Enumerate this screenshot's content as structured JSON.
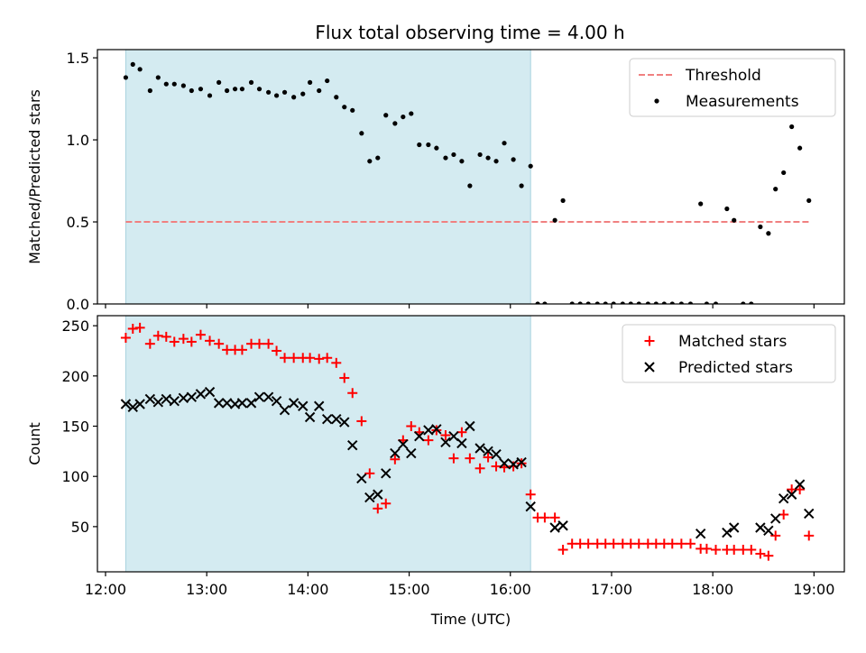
{
  "figure": {
    "title": "Flux total observing time = 4.00 h"
  },
  "chart_data": [
    {
      "type": "scatter",
      "ylabel": "Matched/Predicted stars",
      "xlim": [
        11.92,
        19.3
      ],
      "ylim": [
        0.0,
        1.55
      ],
      "yticks": [
        0.0,
        0.5,
        1.0,
        1.5
      ],
      "ytick_labels": [
        "0.0",
        "0.5",
        "1.0",
        "1.5"
      ],
      "shaded_interval": {
        "x": [
          12.2,
          16.2
        ],
        "color": "#d4ebf1"
      },
      "threshold": {
        "name": "Threshold",
        "value": 0.5,
        "x": [
          12.2,
          18.97
        ],
        "color": "#f08080"
      },
      "legend": {
        "placement": "top-right",
        "entries": [
          "Threshold",
          "Measurements"
        ]
      },
      "series": [
        {
          "name": "Measurements",
          "marker": "dot",
          "color": "#000000",
          "x": [
            12.2,
            12.27,
            12.34,
            12.44,
            12.52,
            12.6,
            12.68,
            12.77,
            12.85,
            12.94,
            13.03,
            13.12,
            13.2,
            13.28,
            13.35,
            13.44,
            13.52,
            13.61,
            13.69,
            13.77,
            13.86,
            13.95,
            14.02,
            14.11,
            14.19,
            14.28,
            14.36,
            14.44,
            14.53,
            14.61,
            14.69,
            14.77,
            14.86,
            14.94,
            15.02,
            15.1,
            15.19,
            15.27,
            15.36,
            15.44,
            15.52,
            15.6,
            15.7,
            15.78,
            15.86,
            15.94,
            16.03,
            16.11,
            16.2,
            16.27,
            16.34,
            16.44,
            16.52,
            16.61,
            16.69,
            16.77,
            16.86,
            16.94,
            17.02,
            17.11,
            17.19,
            17.27,
            17.36,
            17.44,
            17.52,
            17.6,
            17.69,
            17.78,
            17.88,
            17.94,
            18.03,
            18.14,
            18.21,
            18.3,
            18.38,
            18.47,
            18.55,
            18.62,
            18.7,
            18.78,
            18.86,
            18.95
          ],
          "y": [
            1.38,
            1.46,
            1.43,
            1.3,
            1.38,
            1.34,
            1.34,
            1.33,
            1.3,
            1.31,
            1.27,
            1.35,
            1.3,
            1.31,
            1.31,
            1.35,
            1.31,
            1.29,
            1.27,
            1.29,
            1.26,
            1.28,
            1.35,
            1.3,
            1.36,
            1.26,
            1.2,
            1.18,
            1.04,
            0.87,
            0.89,
            1.15,
            1.1,
            1.14,
            1.16,
            0.97,
            0.97,
            0.95,
            0.89,
            0.91,
            0.87,
            0.72,
            0.91,
            0.89,
            0.87,
            0.98,
            0.88,
            0.72,
            0.84,
            0.0,
            0.0,
            0.51,
            0.63,
            0.0,
            0.0,
            0.0,
            0.0,
            0.0,
            0.0,
            0.0,
            0.0,
            0.0,
            0.0,
            0.0,
            0.0,
            0.0,
            0.0,
            0.0,
            0.61,
            0.0,
            0.0,
            0.58,
            0.51,
            0.0,
            0.0,
            0.47,
            0.43,
            0.7,
            0.8,
            1.08,
            0.95,
            0.63
          ]
        }
      ]
    },
    {
      "type": "scatter",
      "xlabel": "Time (UTC)",
      "ylabel": "Count",
      "xlim": [
        11.92,
        19.3
      ],
      "ylim": [
        5,
        260
      ],
      "xticks": [
        12,
        13,
        14,
        15,
        16,
        17,
        18,
        19
      ],
      "xtick_labels": [
        "12:00",
        "13:00",
        "14:00",
        "15:00",
        "16:00",
        "17:00",
        "18:00",
        "19:00"
      ],
      "yticks": [
        50,
        100,
        150,
        200,
        250
      ],
      "ytick_labels": [
        "50",
        "100",
        "150",
        "200",
        "250"
      ],
      "shaded_interval": {
        "x": [
          12.2,
          16.2
        ],
        "color": "#d4ebf1"
      },
      "legend": {
        "placement": "top-right",
        "entries": [
          "Matched stars",
          "Predicted stars"
        ]
      },
      "series": [
        {
          "name": "Matched stars",
          "marker": "plus",
          "color": "#ff0000",
          "x": [
            12.2,
            12.27,
            12.34,
            12.44,
            12.52,
            12.6,
            12.68,
            12.77,
            12.85,
            12.94,
            13.03,
            13.12,
            13.2,
            13.28,
            13.35,
            13.44,
            13.52,
            13.61,
            13.69,
            13.77,
            13.86,
            13.95,
            14.02,
            14.11,
            14.19,
            14.28,
            14.36,
            14.44,
            14.53,
            14.61,
            14.69,
            14.77,
            14.86,
            14.94,
            15.02,
            15.1,
            15.19,
            15.27,
            15.36,
            15.44,
            15.52,
            15.6,
            15.7,
            15.78,
            15.86,
            15.94,
            16.03,
            16.11,
            16.2,
            16.27,
            16.34,
            16.44,
            16.52,
            16.61,
            16.69,
            16.77,
            16.86,
            16.94,
            17.02,
            17.11,
            17.19,
            17.27,
            17.36,
            17.44,
            17.52,
            17.6,
            17.69,
            17.78,
            17.88,
            17.94,
            18.03,
            18.14,
            18.21,
            18.3,
            18.38,
            18.47,
            18.55,
            18.62,
            18.7,
            18.78,
            18.86,
            18.95
          ],
          "y": [
            238,
            247,
            248,
            232,
            240,
            239,
            234,
            237,
            234,
            241,
            235,
            232,
            226,
            226,
            226,
            232,
            232,
            232,
            225,
            218,
            218,
            218,
            218,
            217,
            218,
            213,
            198,
            183,
            155,
            103,
            68,
            73,
            117,
            136,
            150,
            144,
            136,
            146,
            141,
            118,
            144,
            118,
            108,
            119,
            110,
            109,
            110,
            113,
            82,
            59,
            59,
            59,
            27,
            33,
            33,
            33,
            33,
            33,
            33,
            33,
            33,
            33,
            33,
            33,
            33,
            33,
            33,
            33,
            28,
            28,
            27,
            27,
            27,
            27,
            27,
            23,
            21,
            41,
            62,
            87,
            87,
            41
          ]
        },
        {
          "name": "Predicted stars",
          "marker": "x",
          "color": "#000000",
          "x": [
            12.2,
            12.27,
            12.34,
            12.44,
            12.52,
            12.6,
            12.68,
            12.77,
            12.85,
            12.94,
            13.03,
            13.12,
            13.2,
            13.28,
            13.35,
            13.44,
            13.52,
            13.61,
            13.69,
            13.77,
            13.86,
            13.95,
            14.02,
            14.11,
            14.19,
            14.28,
            14.36,
            14.44,
            14.53,
            14.61,
            14.69,
            14.77,
            14.86,
            14.94,
            15.02,
            15.1,
            15.19,
            15.27,
            15.36,
            15.44,
            15.52,
            15.6,
            15.7,
            15.78,
            15.86,
            15.94,
            16.03,
            16.11,
            16.2,
            16.44,
            16.52,
            17.88,
            18.14,
            18.21,
            18.47,
            18.55,
            18.62,
            18.7,
            18.78,
            18.86,
            18.95
          ],
          "y": [
            172,
            169,
            172,
            177,
            174,
            177,
            175,
            178,
            179,
            182,
            184,
            173,
            173,
            172,
            173,
            173,
            179,
            179,
            175,
            166,
            173,
            170,
            159,
            170,
            157,
            157,
            154,
            131,
            98,
            79,
            82,
            103,
            123,
            132,
            123,
            140,
            146,
            147,
            134,
            140,
            133,
            150,
            128,
            125,
            122,
            113,
            112,
            114,
            70,
            49,
            51,
            43,
            44,
            49,
            49,
            46,
            58,
            78,
            82,
            92,
            63
          ]
        }
      ]
    }
  ]
}
